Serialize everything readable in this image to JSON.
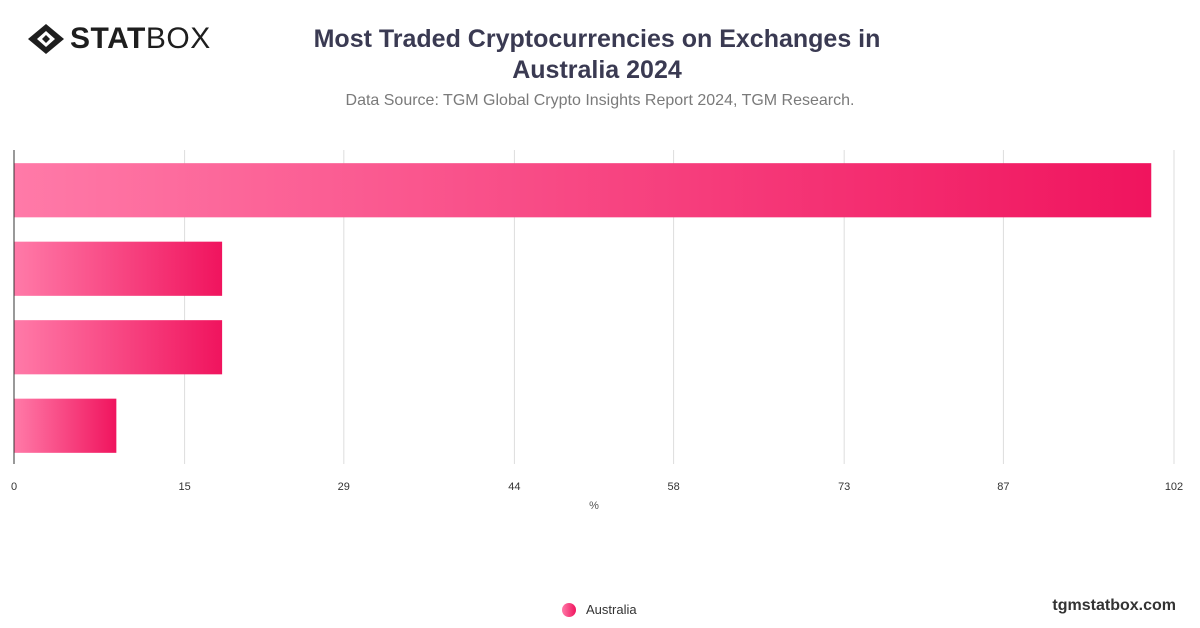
{
  "logo": {
    "bold_text": "STAT",
    "light_text": "BOX"
  },
  "title_lines": [
    "Most Traded Cryptocurrencies on Exchanges in",
    "Australia 2024"
  ],
  "subtitle": "Data Source: TGM Global Crypto Insights Report 2024, TGM Research.",
  "brand_url": "tgmstatbox.com",
  "colors": {
    "bar_start": "#ff7aa8",
    "bar_end": "#f0145e",
    "grid": "#dddddd",
    "axis": "#333333"
  },
  "chart_data": {
    "type": "bar",
    "orientation": "horizontal",
    "categories": [
      "",
      "",
      "",
      ""
    ],
    "series": [
      {
        "name": "Australia",
        "values": [
          100,
          18.3,
          18.3,
          9
        ]
      }
    ],
    "xlabel": "%",
    "ylabel": "",
    "xlim": [
      0,
      102
    ],
    "xticks": [
      0,
      15,
      29,
      44,
      58,
      73,
      87,
      102
    ],
    "grid": true,
    "legend": "bottom-center"
  }
}
